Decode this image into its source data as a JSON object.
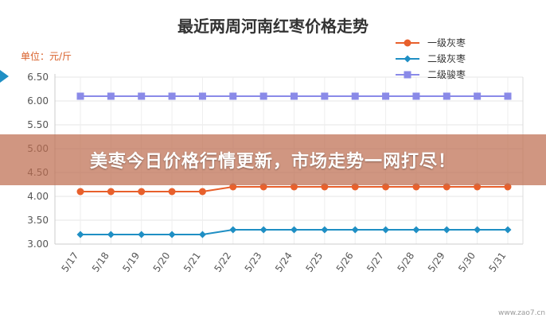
{
  "chart_data": {
    "type": "line",
    "title": "最近两周河南红枣价格走势",
    "unit_label": "单位：元/斤",
    "categories": [
      "5/17",
      "5/18",
      "5/19",
      "5/20",
      "5/21",
      "5/22",
      "5/23",
      "5/24",
      "5/25",
      "5/26",
      "5/27",
      "5/28",
      "5/29",
      "5/30",
      "5/31"
    ],
    "series": [
      {
        "name": "一级灰枣",
        "color": "#e8602c",
        "marker": "circle",
        "values": [
          4.1,
          4.1,
          4.1,
          4.1,
          4.1,
          4.2,
          4.2,
          4.2,
          4.2,
          4.2,
          4.2,
          4.2,
          4.2,
          4.2,
          4.2
        ]
      },
      {
        "name": "二级灰枣",
        "color": "#1f8fc4",
        "marker": "diamond",
        "values": [
          3.2,
          3.2,
          3.2,
          3.2,
          3.2,
          3.3,
          3.3,
          3.3,
          3.3,
          3.3,
          3.3,
          3.3,
          3.3,
          3.3,
          3.3
        ]
      },
      {
        "name": "二级骏枣",
        "color": "#8a8ae8",
        "marker": "square",
        "values": [
          6.1,
          6.1,
          6.1,
          6.1,
          6.1,
          6.1,
          6.1,
          6.1,
          6.1,
          6.1,
          6.1,
          6.1,
          6.1,
          6.1,
          6.1
        ]
      }
    ],
    "yticks": [
      "3.00",
      "3.50",
      "4.00",
      "4.50",
      "5.00",
      "5.50",
      "6.00",
      "6.50"
    ],
    "ylim": [
      3.0,
      6.5
    ],
    "grid": true,
    "legend_position": "top-right"
  },
  "banner": {
    "text": "美枣今日价格行情更新，市场走势一网打尽！"
  },
  "watermark": {
    "text": "www.zao7.cn"
  }
}
